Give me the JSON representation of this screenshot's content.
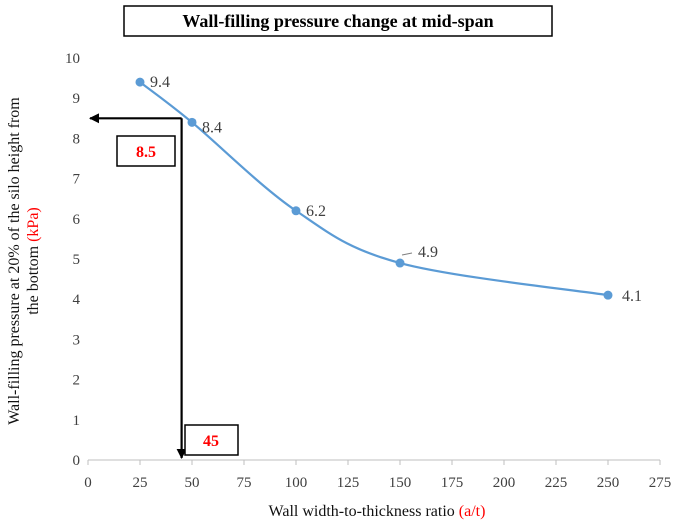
{
  "chart_data": {
    "type": "line",
    "title": "Wall-filling pressure change at mid-span",
    "xlabel": "Wall width-to-thickness ratio",
    "xlabel_unit": "(a/t)",
    "ylabel_line1": "Wall-filling pressure at 20% of the silo height from",
    "ylabel_line2": "the bottom",
    "ylabel_unit": "(kPa)",
    "xlim": [
      0,
      275
    ],
    "ylim": [
      0,
      10
    ],
    "x_ticks": [
      "0",
      "25",
      "50",
      "75",
      "100",
      "125",
      "150",
      "175",
      "200",
      "225",
      "250",
      "275"
    ],
    "y_ticks": [
      "0",
      "1",
      "2",
      "3",
      "4",
      "5",
      "6",
      "7",
      "8",
      "9",
      "10"
    ],
    "x_tick_values": [
      0,
      25,
      50,
      75,
      100,
      125,
      150,
      175,
      200,
      225,
      250,
      275
    ],
    "y_tick_values": [
      0,
      1,
      2,
      3,
      4,
      5,
      6,
      7,
      8,
      9,
      10
    ],
    "series": [
      {
        "name": "Wall-filling pressure",
        "x": [
          25,
          50,
          100,
          150,
          250
        ],
        "y": [
          9.4,
          8.4,
          6.2,
          4.9,
          4.1
        ],
        "labels": [
          "9.4",
          "8.4",
          "6.2",
          "4.9",
          "4.1"
        ]
      }
    ],
    "annotations": {
      "x_value": 45,
      "y_value": 8.5,
      "x_label": "45",
      "y_label": "8.5"
    },
    "colors": {
      "line": "#5B9BD5",
      "accent": "#FF0000",
      "arrow": "#000000",
      "tick_text": "#404040"
    }
  }
}
